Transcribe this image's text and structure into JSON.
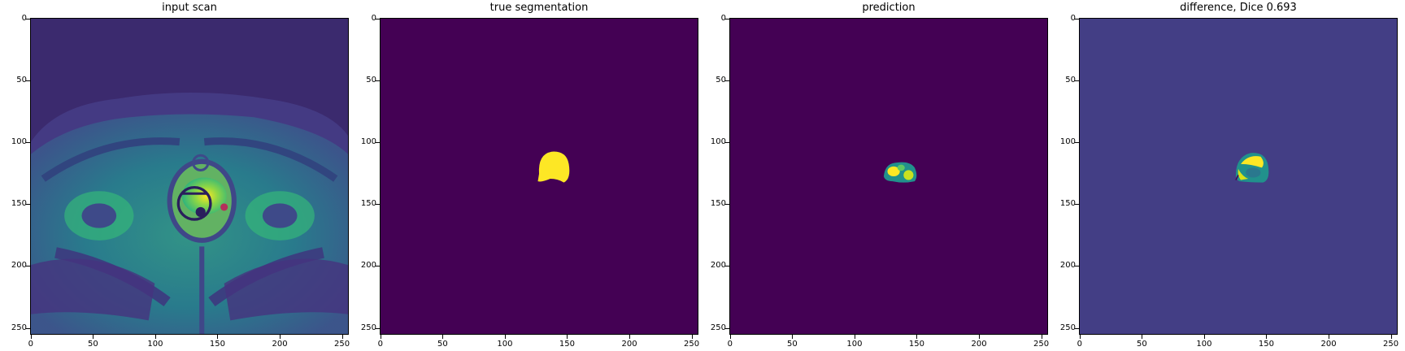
{
  "panels": [
    {
      "title": "input scan",
      "image": "mri-axial-pelvis-scan"
    },
    {
      "title": "true segmentation",
      "image": "ground-truth-mask"
    },
    {
      "title": "prediction",
      "image": "predicted-mask"
    },
    {
      "title": "difference, Dice 0.693",
      "image": "difference-map"
    }
  ],
  "axes": {
    "y_ticks": [
      "0",
      "50",
      "100",
      "150",
      "200",
      "250"
    ],
    "x_ticks": [
      "0",
      "50",
      "100",
      "150",
      "200",
      "250"
    ],
    "range": [
      0,
      256
    ]
  },
  "colors": {
    "viridis_dark": "#440154",
    "viridis_mid": "#21918c",
    "viridis_bright": "#fde725",
    "difference_background": "#433e85"
  }
}
